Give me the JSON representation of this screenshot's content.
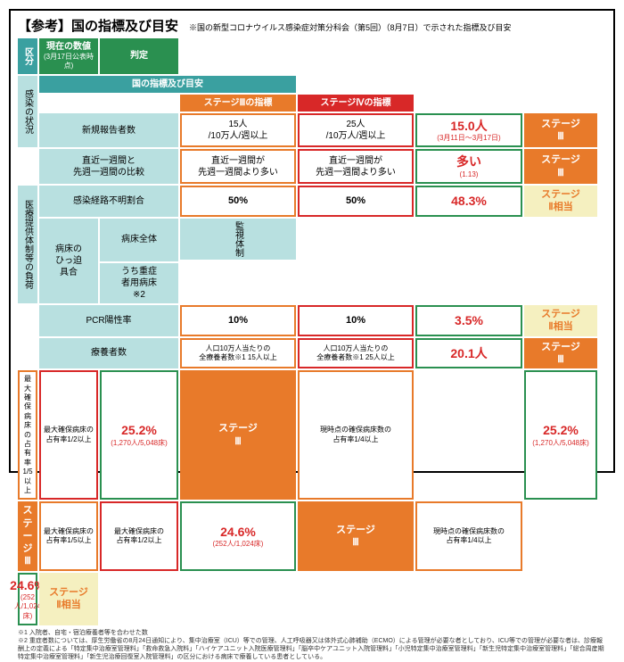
{
  "header": {
    "title": "【参考】国の指標及び目安",
    "sub": "※国の新型コロナウイルス感染症対策分科会（第5回）（8月7日）で示された指標及び目安"
  },
  "colh": {
    "kubun": "区分",
    "shihyo": "国の指標及び目安",
    "s3": "ステージⅢの指標",
    "s4": "ステージⅣの指標",
    "genzai": "現在の数値",
    "genzaiSub": "(3月17日公表時点)",
    "hantei": "判定"
  },
  "rows": [
    {
      "g1": "感染の状況",
      "label": "新規報告者数",
      "c3": "15人\n/10万人/週以上",
      "c4": "25人\n/10万人/週以上",
      "val": "15.0人",
      "valSub": "(3月11日～3月17日)",
      "j": "ステージ\nⅢ",
      "jc": "orgJ"
    },
    {
      "label": "直近一週間と\n先週一週間の比較",
      "c3": "直近一週間が\n先週一週間より多い",
      "c4": "直近一週間が\n先週一週間より多い",
      "val": "多い",
      "valSub": "(1.13)",
      "j": "ステージ\nⅢ",
      "jc": "orgJ"
    },
    {
      "label": "感染経路不明割合",
      "c3": "50%",
      "c4": "50%",
      "val": "48.3%",
      "valSub": "",
      "j": "ステージ\nⅡ相当",
      "jc": "ylwJ"
    },
    {
      "g1": "監視体制",
      "label": "PCR陽性率",
      "c3": "10%",
      "c4": "10%",
      "val": "3.5%",
      "valSub": "",
      "j": "ステージ\nⅡ相当",
      "jc": "ylwJ"
    },
    {
      "g1": "医療提供体制等の負荷",
      "label": "療養者数",
      "c3": "人口10万人当たりの\n全療養者数※1 15人以上",
      "c4": "人口10万人当たりの\n全療養者数※1 25人以上",
      "val": "20.1人",
      "valSub": "",
      "j": "ステージ\nⅢ",
      "jc": "orgJ"
    },
    {
      "g2": "病床の\nひっ迫\n具合",
      "g3": "病床全体",
      "label": "",
      "c3": "最大確保病床の\n占有率1/5以上",
      "c4": "最大確保病床の\n占有率1/2以上",
      "val": "25.2%",
      "valSub": "(1,270人/5,048床)",
      "j": "ステージ\nⅢ",
      "jc": "orgJ"
    },
    {
      "label": "",
      "c3": "現時点の確保病床数の\n占有率1/4以上",
      "c4": "",
      "val": "25.2%",
      "valSub": "(1,270人/5,048床)",
      "j": "ステージ\nⅢ",
      "jc": "orgJ"
    },
    {
      "g3": "うち重症\n者用病床\n※2",
      "label": "",
      "c3": "最大確保病床の\n占有率1/5以上",
      "c4": "最大確保病床の\n占有率1/2以上",
      "val": "24.6%",
      "valSub": "(252人/1,024床)",
      "j": "ステージ\nⅢ",
      "jc": "orgJ"
    },
    {
      "label": "",
      "c3": "現時点の確保病床数の\n占有率1/4以上",
      "c4": "",
      "val": "24.6%",
      "valSub": "(252人/1,024床)",
      "j": "ステージ\nⅡ相当",
      "jc": "ylwJ"
    }
  ],
  "notes": "※1 入院者、自宅・宿泊療養者等を合わせた数\n※2 重症者数については、厚生労働省の8月24日通知により、集中治療室（ICU）等での管理、人工呼吸器又は体外式心肺補助（ECMO）による管理が必要な者としており、ICU等での管理が必要な者は、診療報酬上の定義による「特定集中治療室管理料」「救命救急入院料」「ハイケアユニット入院医療管理料」「脳卒中ケアユニット入院管理料」「小児特定集中治療室管理料」「新生児特定集中治療室管理料」「総合周産期特定集中治療室管理料」「新生児治療回復室入院管理料」の区分における病床で療養している患者としている。"
}
